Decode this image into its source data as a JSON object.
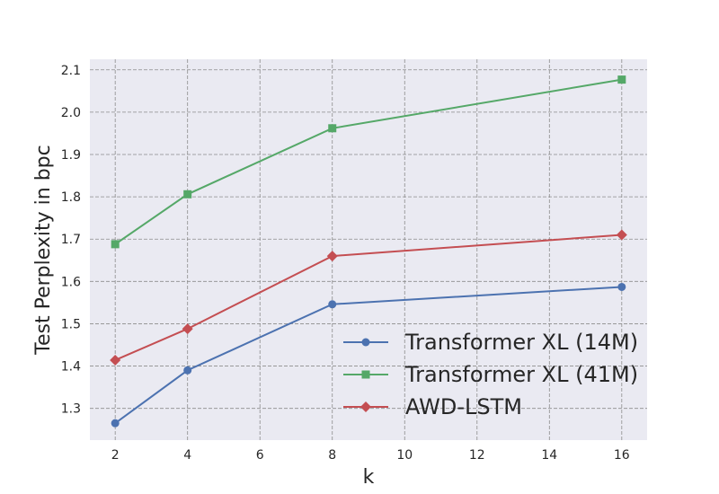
{
  "chart_data": {
    "type": "line",
    "xlabel": "k",
    "ylabel": "Test Perplexity in bpc",
    "x": [
      2,
      4,
      8,
      16
    ],
    "xticks": [
      2,
      4,
      6,
      8,
      10,
      12,
      14,
      16
    ],
    "yticks": [
      1.3,
      1.4,
      1.5,
      1.6,
      1.7,
      1.8,
      1.9,
      2.0,
      2.1
    ],
    "xlim": [
      1.3,
      16.7
    ],
    "ylim": [
      1.225,
      2.125
    ],
    "grid": true,
    "legend_position": "lower-right",
    "background_color": "#eaeaf2",
    "series": [
      {
        "name": "Transformer XL (14M)",
        "marker": "circle",
        "color": "#4c72b0",
        "values": [
          1.265,
          1.39,
          1.546,
          1.587
        ]
      },
      {
        "name": "Transformer XL (41M)",
        "marker": "square",
        "color": "#55a868",
        "values": [
          1.688,
          1.806,
          1.962,
          2.077
        ]
      },
      {
        "name": "AWD-LSTM",
        "marker": "diamond",
        "color": "#c44e52",
        "values": [
          1.414,
          1.488,
          1.66,
          1.71
        ]
      }
    ]
  }
}
